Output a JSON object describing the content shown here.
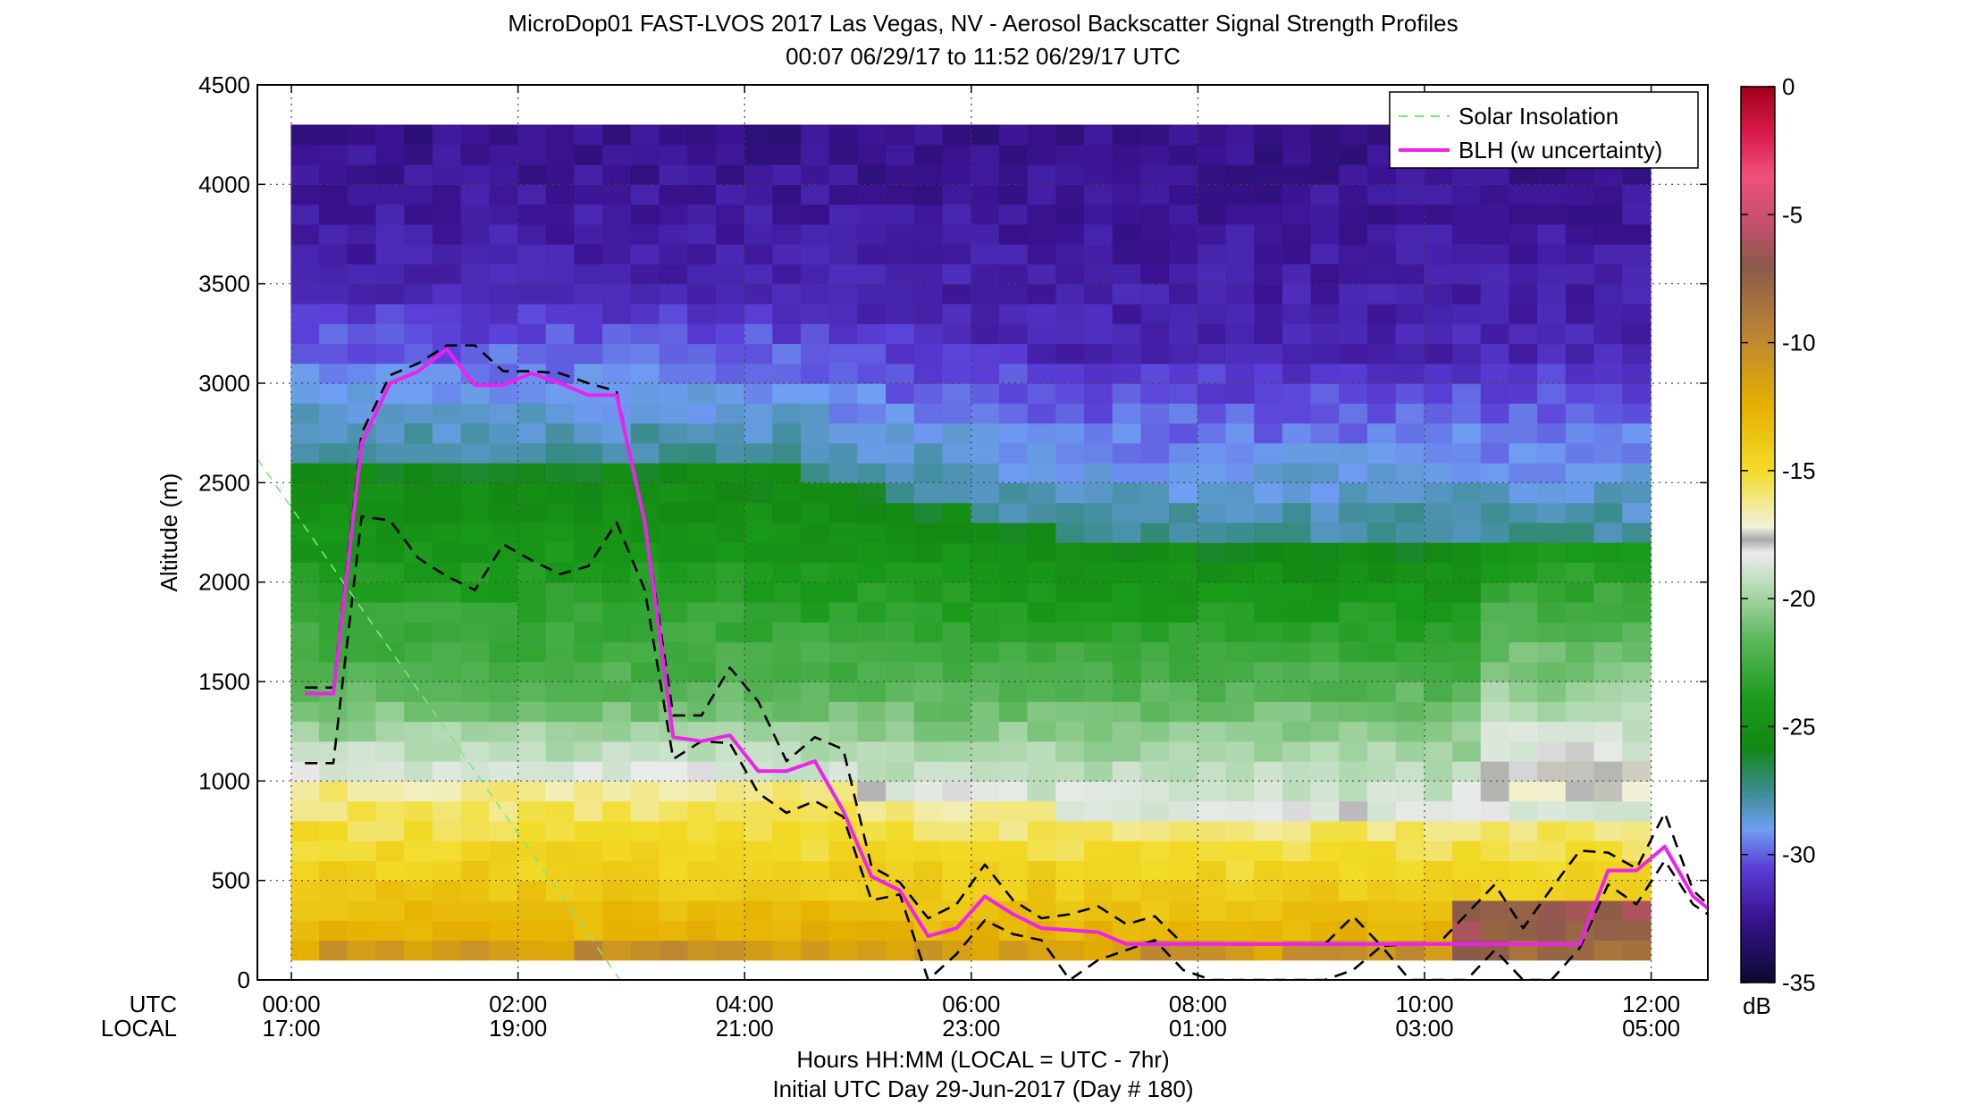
{
  "chart_data": {
    "type": "heatmap",
    "title": "MicroDop01 FAST-LVOS 2017 Las Vegas, NV - Aerosol Backscatter Signal Strength Profiles",
    "subtitle": "00:07 06/29/17 to 11:52 06/29/17  UTC",
    "ylabel": "Altitude (m)",
    "xlabel": "Hours HH:MM  (LOCAL = UTC - 7hr)",
    "xlabel2": "Initial UTC Day 29-Jun-2017 (Day # 180)",
    "x_row_labels": [
      "UTC",
      "LOCAL"
    ],
    "xlim_hours": [
      -0.3,
      12.5
    ],
    "ylim": [
      0,
      4500
    ],
    "grid": true,
    "x_ticks": [
      {
        "hour": 0,
        "utc": "00:00",
        "local": "17:00"
      },
      {
        "hour": 2,
        "utc": "02:00",
        "local": "19:00"
      },
      {
        "hour": 4,
        "utc": "04:00",
        "local": "21:00"
      },
      {
        "hour": 6,
        "utc": "06:00",
        "local": "23:00"
      },
      {
        "hour": 8,
        "utc": "08:00",
        "local": "01:00"
      },
      {
        "hour": 10,
        "utc": "10:00",
        "local": "03:00"
      },
      {
        "hour": 12,
        "utc": "12:00",
        "local": "05:00"
      }
    ],
    "y_ticks": [
      "0",
      "500",
      "1000",
      "1500",
      "2000",
      "2500",
      "3000",
      "3500",
      "4000",
      "4500"
    ],
    "colorbar": {
      "unit": "dB",
      "range": [
        -35,
        0
      ],
      "ticks": [
        "0",
        "-5",
        "-10",
        "-15",
        "-20",
        "-25",
        "-30",
        "-35"
      ],
      "stops": [
        {
          "v": -35,
          "c": "#0a0a30"
        },
        {
          "v": -32.5,
          "c": "#3a1290"
        },
        {
          "v": -30.5,
          "c": "#5a3fd8"
        },
        {
          "v": -29,
          "c": "#6f9ff2"
        },
        {
          "v": -27.5,
          "c": "#3a8c8c"
        },
        {
          "v": -25.8,
          "c": "#138813"
        },
        {
          "v": -24,
          "c": "#199a19"
        },
        {
          "v": -21.5,
          "c": "#60b860"
        },
        {
          "v": -19.5,
          "c": "#b8dcb8"
        },
        {
          "v": -18.2,
          "c": "#ececec"
        },
        {
          "v": -17.7,
          "c": "#a8a8a8"
        },
        {
          "v": -17.2,
          "c": "#f2f2dc"
        },
        {
          "v": -15,
          "c": "#f2dc28"
        },
        {
          "v": -12.5,
          "c": "#e6b000"
        },
        {
          "v": -10,
          "c": "#c08a30"
        },
        {
          "v": -7,
          "c": "#8a5a4a"
        },
        {
          "v": -5.5,
          "c": "#c0506a"
        },
        {
          "v": -3.5,
          "c": "#f0507a"
        },
        {
          "v": -1.8,
          "c": "#d81a4a"
        },
        {
          "v": 0,
          "c": "#a00018"
        }
      ]
    },
    "legend": {
      "position": "top-right",
      "entries": [
        {
          "label": "Solar Insolation",
          "color": "#7ce87c",
          "style": "dashed"
        },
        {
          "label": "BLH (w uncertainty)",
          "color": "#ee22ee",
          "style": "solid"
        }
      ]
    },
    "profiles_time_range_hours": [
      0.12,
      11.87
    ],
    "profile_count": 48,
    "series": [
      {
        "name": "BLH (w uncertainty)",
        "color": "#ee22ee",
        "x": [
          0.12,
          0.37,
          0.62,
          0.87,
          1.12,
          1.37,
          1.62,
          1.87,
          2.12,
          2.37,
          2.62,
          2.87,
          3.12,
          3.37,
          3.62,
          3.87,
          4.12,
          4.37,
          4.62,
          4.87,
          5.12,
          5.37,
          5.62,
          5.87,
          6.12,
          6.37,
          6.62,
          6.87,
          7.12,
          7.37,
          7.62,
          7.87,
          8.12,
          8.37,
          8.62,
          8.87,
          9.12,
          9.37,
          9.62,
          9.87,
          10.12,
          10.37,
          10.62,
          10.87,
          11.12,
          11.37,
          11.62,
          11.87,
          12.12,
          12.37,
          12.5
        ],
        "y": [
          1440,
          1440,
          2700,
          3000,
          3060,
          3170,
          2990,
          2990,
          3050,
          3000,
          2940,
          2940,
          2300,
          1220,
          1200,
          1230,
          1050,
          1050,
          1100,
          850,
          520,
          450,
          220,
          260,
          420,
          330,
          260,
          250,
          240,
          180,
          180,
          180,
          180,
          180,
          180,
          180,
          180,
          180,
          180,
          180,
          180,
          180,
          180,
          180,
          180,
          180,
          550,
          550,
          670,
          420,
          360
        ]
      },
      {
        "name": "",
        "color": "#000000",
        "x": [
          0.12,
          0.37,
          0.62,
          0.87,
          1.12,
          1.37,
          1.62,
          1.87,
          2.12,
          2.37,
          2.62,
          2.87,
          3.12,
          3.37,
          3.62,
          3.87,
          4.12,
          4.37,
          4.62,
          4.87,
          5.12,
          5.37,
          5.62,
          5.87,
          6.12,
          6.37,
          6.62,
          6.87,
          7.12,
          7.37,
          7.62,
          7.87,
          8.12,
          8.37,
          8.62,
          8.87,
          9.12,
          9.37,
          9.62,
          9.87,
          10.12,
          10.37,
          10.62,
          10.87,
          11.12,
          11.37,
          11.62,
          11.87,
          12.12,
          12.37,
          12.5
        ],
        "y": [
          1470,
          1470,
          2750,
          3040,
          3100,
          3190,
          3190,
          3060,
          3060,
          3050,
          3000,
          2960,
          2300,
          1330,
          1330,
          1570,
          1400,
          1100,
          1220,
          1160,
          570,
          490,
          310,
          380,
          580,
          400,
          310,
          330,
          370,
          280,
          320,
          180,
          180,
          180,
          180,
          180,
          180,
          320,
          170,
          180,
          180,
          330,
          480,
          260,
          460,
          650,
          640,
          560,
          840,
          450,
          380
        ]
      },
      {
        "name": "",
        "color": "#000000",
        "x": [
          0.12,
          0.37,
          0.62,
          0.87,
          1.12,
          1.37,
          1.62,
          1.87,
          2.12,
          2.37,
          2.62,
          2.87,
          3.12,
          3.37,
          3.62,
          3.87,
          4.12,
          4.37,
          4.62,
          4.87,
          5.12,
          5.37,
          5.62,
          5.87,
          6.12,
          6.37,
          6.62,
          6.87,
          7.12,
          7.37,
          7.62,
          7.87,
          8.12,
          8.37,
          8.62,
          8.87,
          9.12,
          9.37,
          9.62,
          9.87,
          10.12,
          10.37,
          10.62,
          10.87,
          11.12,
          11.37,
          11.62,
          11.87,
          12.12,
          12.37,
          12.5
        ],
        "y": [
          1090,
          1090,
          2330,
          2310,
          2120,
          2030,
          1960,
          2190,
          2110,
          2040,
          2080,
          2300,
          1960,
          1110,
          1200,
          1190,
          940,
          840,
          900,
          820,
          400,
          430,
          0,
          130,
          300,
          230,
          200,
          0,
          100,
          150,
          200,
          50,
          0,
          0,
          0,
          0,
          0,
          50,
          170,
          0,
          0,
          0,
          150,
          0,
          0,
          160,
          480,
          380,
          600,
          380,
          330
        ]
      },
      {
        "name": "Solar Insolation",
        "color": "#7ce87c",
        "x": [
          -0.3,
          2.9
        ],
        "y": [
          2620,
          0
        ]
      }
    ],
    "field_model": {
      "description": "Backscatter field in dB per profile column and altitude bin",
      "time_bins": 48,
      "altitude_bins": 42,
      "bin_m": 100,
      "first_bin_m": 100,
      "gray_band_values_db": -17.7
    }
  }
}
